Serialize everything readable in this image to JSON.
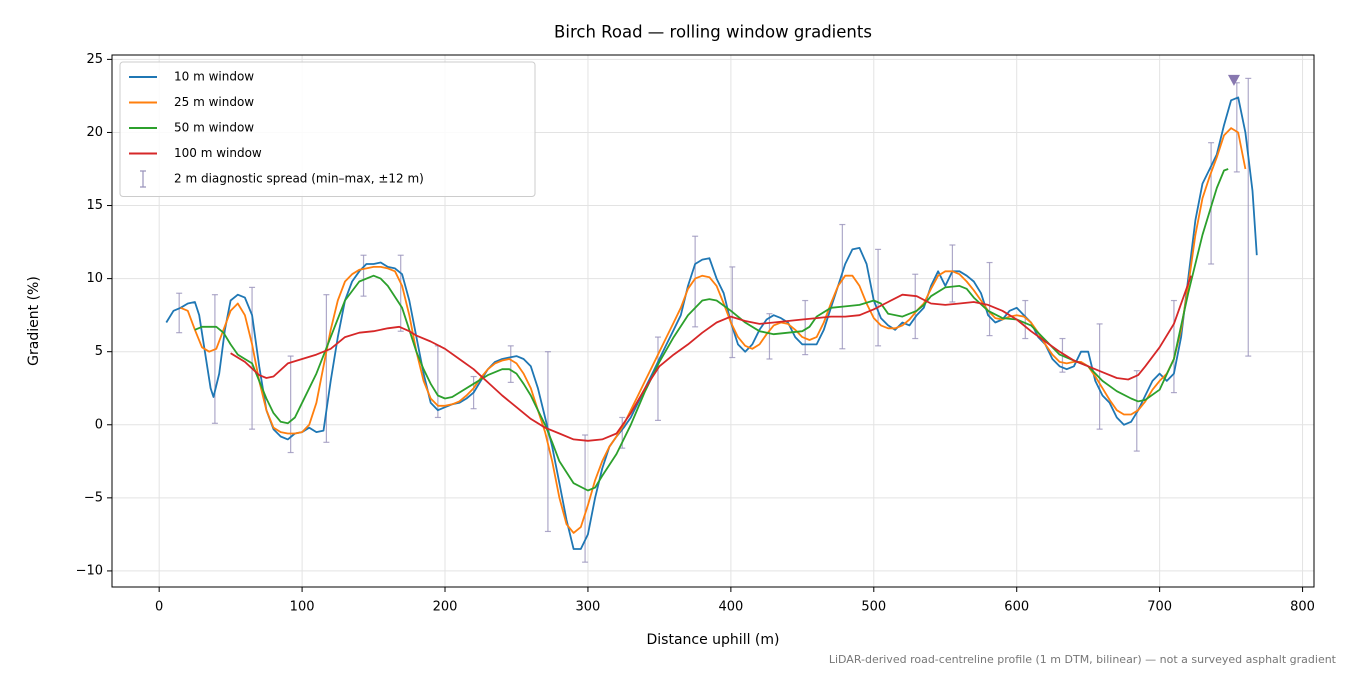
{
  "chart_data": {
    "type": "line",
    "title": "Birch Road — rolling window gradients",
    "xlabel": "Distance uphill (m)",
    "ylabel": "Gradient (%)",
    "footnote": "LiDAR-derived road-centreline profile (1 m DTM, bilinear) — not a surveyed asphalt gradient",
    "xlim": [
      -33,
      808
    ],
    "ylim": [
      -11.1,
      25.3
    ],
    "xticks": [
      0,
      100,
      200,
      300,
      400,
      500,
      600,
      700,
      800
    ],
    "yticks": [
      {
        "value": -10,
        "label": "−10"
      },
      {
        "value": -5,
        "label": "−5"
      },
      0,
      5,
      10,
      15,
      20,
      25
    ],
    "grid": true,
    "legend": "upper left",
    "series": [
      {
        "name": "10 m window",
        "color": "#1f77b4",
        "x": [
          5,
          10,
          15,
          20,
          25,
          28,
          32,
          36,
          38,
          42,
          46,
          50,
          55,
          60,
          65,
          70,
          75,
          80,
          85,
          90,
          95,
          100,
          105,
          110,
          115,
          120,
          125,
          130,
          135,
          140,
          145,
          150,
          155,
          160,
          165,
          170,
          175,
          180,
          185,
          190,
          195,
          200,
          205,
          210,
          215,
          220,
          225,
          230,
          235,
          240,
          245,
          250,
          255,
          260,
          265,
          270,
          275,
          280,
          285,
          290,
          295,
          300,
          305,
          310,
          315,
          320,
          325,
          330,
          335,
          340,
          345,
          350,
          355,
          360,
          365,
          370,
          375,
          380,
          385,
          390,
          395,
          400,
          405,
          410,
          415,
          420,
          425,
          430,
          435,
          440,
          445,
          450,
          455,
          460,
          465,
          470,
          475,
          480,
          485,
          490,
          495,
          500,
          505,
          510,
          515,
          520,
          525,
          530,
          535,
          540,
          545,
          550,
          555,
          560,
          565,
          570,
          575,
          580,
          585,
          590,
          595,
          600,
          605,
          610,
          615,
          620,
          625,
          630,
          635,
          640,
          645,
          650,
          655,
          660,
          665,
          670,
          675,
          680,
          685,
          690,
          695,
          700,
          705,
          710,
          715,
          720,
          725,
          730,
          735,
          740,
          745,
          750,
          755,
          760,
          765,
          768
        ],
        "values": [
          7.0,
          7.8,
          8.0,
          8.3,
          8.4,
          7.5,
          5,
          2.5,
          1.9,
          3.5,
          6.5,
          8.5,
          8.9,
          8.7,
          7.5,
          4,
          1,
          -0.3,
          -0.8,
          -1.0,
          -0.6,
          -0.5,
          -0.2,
          -0.5,
          -0.4,
          3,
          6,
          8.5,
          9.8,
          10.5,
          11.0,
          11.0,
          11.1,
          10.8,
          10.7,
          10.3,
          8.5,
          6,
          3.5,
          1.5,
          1.0,
          1.2,
          1.4,
          1.5,
          1.8,
          2.2,
          3,
          3.8,
          4.3,
          4.5,
          4.6,
          4.7,
          4.5,
          4.0,
          2.5,
          0.5,
          -1.5,
          -4,
          -6.5,
          -8.5,
          -8.5,
          -7.5,
          -5,
          -3,
          -1.5,
          -0.8,
          -0.2,
          0.5,
          1.5,
          2.5,
          3.5,
          4.5,
          5.5,
          6.5,
          7.5,
          9.5,
          11.0,
          11.3,
          11.4,
          10,
          9,
          7,
          5.5,
          5.0,
          5.5,
          6.5,
          7.2,
          7.5,
          7.3,
          7.0,
          6,
          5.5,
          5.5,
          5.5,
          6.5,
          8,
          9.5,
          11,
          12,
          12.1,
          11,
          8.5,
          7.3,
          6.8,
          6.5,
          7,
          6.8,
          7.5,
          8,
          9.5,
          10.5,
          9.5,
          10.5,
          10.5,
          10.2,
          9.8,
          9,
          7.5,
          7,
          7.2,
          7.8,
          8,
          7.5,
          7,
          6,
          5.5,
          4.5,
          4,
          3.8,
          4,
          5,
          5,
          3,
          2,
          1.5,
          0.5,
          0,
          0.2,
          1,
          2,
          3,
          3.5,
          3,
          3.5,
          6,
          10,
          14,
          16.5,
          17.5,
          18.5,
          20.5,
          22.2,
          22.4,
          20,
          16,
          11.6
        ]
      },
      {
        "name": "25 m window",
        "color": "#ff7f0e",
        "x": [
          15,
          20,
          25,
          30,
          35,
          40,
          45,
          50,
          55,
          60,
          65,
          70,
          75,
          80,
          85,
          90,
          95,
          100,
          105,
          110,
          115,
          120,
          125,
          130,
          135,
          140,
          145,
          150,
          155,
          160,
          165,
          170,
          175,
          180,
          185,
          190,
          195,
          200,
          205,
          210,
          215,
          220,
          225,
          230,
          235,
          240,
          245,
          250,
          255,
          260,
          265,
          270,
          275,
          280,
          285,
          290,
          295,
          300,
          305,
          310,
          315,
          320,
          325,
          330,
          335,
          340,
          345,
          350,
          355,
          360,
          365,
          370,
          375,
          380,
          385,
          390,
          395,
          400,
          405,
          410,
          415,
          420,
          425,
          430,
          435,
          440,
          445,
          450,
          455,
          460,
          465,
          470,
          475,
          480,
          485,
          490,
          495,
          500,
          505,
          510,
          515,
          520,
          525,
          530,
          535,
          540,
          545,
          550,
          555,
          560,
          565,
          570,
          575,
          580,
          585,
          590,
          595,
          600,
          605,
          610,
          615,
          620,
          625,
          630,
          635,
          640,
          645,
          650,
          655,
          660,
          665,
          670,
          675,
          680,
          685,
          690,
          695,
          700,
          705,
          710,
          715,
          720,
          725,
          730,
          735,
          740,
          745,
          750,
          755,
          760
        ],
        "values": [
          8.0,
          7.8,
          6.5,
          5.3,
          5.0,
          5.2,
          6.5,
          7.8,
          8.3,
          7.5,
          5.5,
          3,
          1,
          -0.2,
          -0.5,
          -0.6,
          -0.6,
          -0.5,
          0,
          1.5,
          4,
          6.5,
          8.5,
          9.8,
          10.3,
          10.6,
          10.7,
          10.8,
          10.8,
          10.7,
          10.5,
          9.5,
          7.5,
          5,
          3,
          1.8,
          1.3,
          1.3,
          1.4,
          1.6,
          2,
          2.5,
          3.2,
          3.8,
          4.2,
          4.4,
          4.5,
          4.2,
          3.5,
          2.5,
          1,
          -0.5,
          -2.5,
          -5,
          -6.8,
          -7.4,
          -7,
          -5.5,
          -3.8,
          -2.5,
          -1.5,
          -0.8,
          0,
          1,
          2,
          3,
          4,
          5,
          6,
          7,
          8,
          9.3,
          10,
          10.2,
          10.1,
          9.5,
          8.3,
          7,
          6,
          5.4,
          5.2,
          5.5,
          6.2,
          6.8,
          7,
          6.9,
          6.5,
          6,
          5.8,
          6,
          7,
          8.3,
          9.5,
          10.2,
          10.2,
          9.5,
          8.3,
          7.3,
          6.8,
          6.6,
          6.6,
          6.8,
          7.2,
          7.8,
          8.3,
          9.3,
          10.2,
          10.5,
          10.5,
          10.3,
          9.8,
          9.2,
          8.5,
          7.8,
          7.3,
          7.2,
          7.4,
          7.5,
          7.4,
          7,
          6.3,
          5.5,
          4.8,
          4.3,
          4.2,
          4.3,
          4.3,
          4.0,
          3.3,
          2.5,
          1.7,
          1,
          0.7,
          0.7,
          1,
          1.6,
          2.4,
          3,
          3.5,
          4.5,
          6.5,
          9.5,
          13,
          15.5,
          17,
          18.3,
          19.8,
          20.3,
          20,
          17.5
        ]
      },
      {
        "name": "50 m window",
        "color": "#2ca02c",
        "x": [
          25,
          30,
          40,
          45,
          50,
          55,
          60,
          65,
          70,
          75,
          80,
          85,
          90,
          95,
          100,
          110,
          120,
          130,
          140,
          150,
          155,
          160,
          170,
          175,
          180,
          185,
          190,
          195,
          200,
          205,
          210,
          220,
          230,
          240,
          245,
          250,
          255,
          260,
          265,
          270,
          275,
          280,
          290,
          300,
          305,
          310,
          320,
          330,
          340,
          350,
          360,
          370,
          380,
          385,
          390,
          400,
          410,
          420,
          430,
          440,
          450,
          455,
          460,
          470,
          480,
          490,
          500,
          505,
          510,
          520,
          530,
          535,
          540,
          550,
          560,
          565,
          570,
          580,
          590,
          600,
          610,
          620,
          630,
          640,
          650,
          660,
          670,
          680,
          685,
          690,
          700,
          710,
          720,
          730,
          740,
          745,
          748
        ],
        "values": [
          6.5,
          6.7,
          6.7,
          6.3,
          5.5,
          4.8,
          4.5,
          4.2,
          3,
          1.8,
          0.8,
          0.2,
          0.1,
          0.5,
          1.5,
          3.5,
          6,
          8.5,
          9.8,
          10.2,
          10,
          9.5,
          8,
          6.5,
          5,
          3.8,
          2.8,
          2,
          1.8,
          1.9,
          2.2,
          2.8,
          3.4,
          3.8,
          3.8,
          3.5,
          2.8,
          2,
          1,
          0,
          -1.2,
          -2.5,
          -4,
          -4.5,
          -4.3,
          -3.5,
          -2,
          0,
          2.3,
          4.3,
          6,
          7.5,
          8.5,
          8.6,
          8.5,
          7.8,
          7,
          6.4,
          6.2,
          6.3,
          6.4,
          6.7,
          7.4,
          8,
          8.1,
          8.2,
          8.5,
          8.3,
          7.6,
          7.4,
          7.8,
          8.2,
          8.8,
          9.4,
          9.5,
          9.3,
          8.7,
          7.8,
          7.3,
          7.2,
          6.8,
          5.8,
          4.8,
          4.4,
          4.0,
          3,
          2.3,
          1.8,
          1.6,
          1.7,
          2.4,
          4.5,
          9,
          13,
          16.2,
          17.4,
          17.5
        ]
      },
      {
        "name": "100 m window",
        "color": "#d62728",
        "x": [
          50,
          60,
          70,
          75,
          80,
          90,
          100,
          110,
          120,
          130,
          140,
          150,
          160,
          168,
          175,
          180,
          190,
          200,
          210,
          220,
          230,
          240,
          250,
          260,
          270,
          280,
          290,
          300,
          310,
          320,
          330,
          340,
          350,
          360,
          370,
          380,
          390,
          400,
          410,
          420,
          430,
          440,
          450,
          460,
          470,
          480,
          490,
          500,
          510,
          520,
          530,
          540,
          550,
          560,
          570,
          580,
          590,
          600,
          610,
          620,
          630,
          640,
          650,
          660,
          670,
          678,
          685,
          690,
          700,
          710,
          722
        ],
        "values": [
          4.9,
          4.3,
          3.4,
          3.2,
          3.3,
          4.2,
          4.5,
          4.8,
          5.2,
          6,
          6.3,
          6.4,
          6.6,
          6.7,
          6.4,
          6.1,
          5.7,
          5.2,
          4.5,
          3.8,
          2.9,
          2,
          1.2,
          0.4,
          -0.2,
          -0.6,
          -1,
          -1.1,
          -1,
          -0.6,
          0.8,
          2.5,
          4,
          4.8,
          5.5,
          6.3,
          7,
          7.4,
          7.1,
          6.9,
          7,
          7.1,
          7.2,
          7.3,
          7.4,
          7.4,
          7.5,
          7.9,
          8.4,
          8.9,
          8.8,
          8.3,
          8.2,
          8.3,
          8.4,
          8.2,
          7.8,
          7.2,
          6.4,
          5.7,
          5,
          4.4,
          4,
          3.6,
          3.2,
          3.1,
          3.4,
          4,
          5.3,
          6.9,
          10.2
        ]
      }
    ],
    "errorbars": {
      "name": "2 m diagnostic spread (min–max, ±12 m)",
      "color": "#9a94bc",
      "x": [
        14,
        39,
        65,
        92,
        117,
        143,
        169,
        195,
        220,
        246,
        272,
        298,
        324,
        349,
        375,
        401,
        427,
        452,
        478,
        503,
        529,
        555,
        581,
        606,
        632,
        658,
        684,
        710,
        736,
        754,
        762
      ],
      "low": [
        6.3,
        0.1,
        -0.3,
        -1.9,
        -1.2,
        8.8,
        6.4,
        0.5,
        1.1,
        2.9,
        -7.3,
        -9.4,
        -1.6,
        0.3,
        6.7,
        4.6,
        4.5,
        4.8,
        5.2,
        5.4,
        5.9,
        8.4,
        6.1,
        5.9,
        3.6,
        -0.3,
        -1.8,
        2.2,
        11.0,
        17.3,
        4.7
      ],
      "high": [
        9.0,
        8.9,
        9.4,
        4.7,
        8.9,
        11.6,
        11.6,
        5.4,
        3.3,
        5.4,
        5.0,
        -0.7,
        0.5,
        6.0,
        12.9,
        10.8,
        7.6,
        8.5,
        13.7,
        12.0,
        10.3,
        12.3,
        11.1,
        8.5,
        5.9,
        6.9,
        3.7,
        8.5,
        19.3,
        23.4,
        23.7
      ]
    },
    "peak_marker": {
      "x": 752,
      "y": 23.6,
      "color": "#8878b0"
    }
  }
}
